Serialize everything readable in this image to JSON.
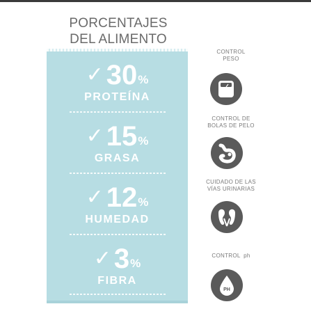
{
  "title": {
    "line1": "PORCENTAJES",
    "line2": "DEL ALIMENTO"
  },
  "stats": [
    {
      "check": "✓",
      "value": "30",
      "unit": "%",
      "label": "PROTEÍNA"
    },
    {
      "check": "✓",
      "value": "15",
      "unit": "%",
      "label": "GRASA"
    },
    {
      "check": "✓",
      "value": "12",
      "unit": "%",
      "label": "HUMEDAD"
    },
    {
      "check": "✓",
      "value": "3",
      "unit": "%",
      "label": "FIBRA"
    }
  ],
  "benefits": [
    {
      "line1": "CONTROL",
      "line2": "PESO",
      "icon": "scale-icon"
    },
    {
      "line1": "CONTROL DE",
      "line2": "BOLAS DE PELO",
      "icon": "stomach-icon"
    },
    {
      "line1": "CUIDADO DE LAS",
      "line2": "VÍAS URINARIAS",
      "icon": "kidneys-icon"
    },
    {
      "line1": "CONTROL",
      "line2": "ph",
      "icon": "ph-drop-icon",
      "badge": "PH"
    }
  ],
  "colors": {
    "panel": "#b7dde3",
    "icon_bg": "#5a5a5a",
    "text_gray": "#7a7a7a"
  }
}
